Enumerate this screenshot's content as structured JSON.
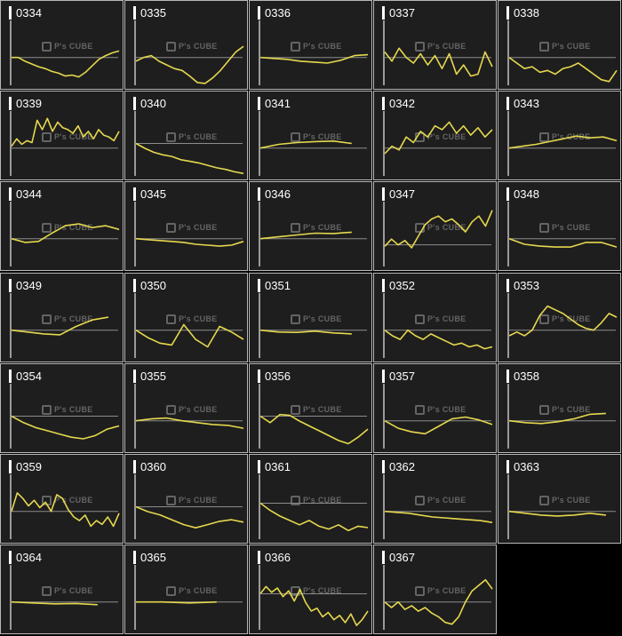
{
  "colors": {
    "background": "#000000",
    "panel": "#1e1e1e",
    "border": "#b8b8b8",
    "line": "#e6d84e",
    "baseline": "#8c8c8c",
    "axis": "#9a9a9a"
  },
  "watermark": "P's CUBE",
  "chart_data": [
    {
      "type": "line",
      "title": "0334",
      "values": [
        0.0,
        -0.0,
        -0.2,
        -0.35,
        -0.5,
        -0.6,
        -0.75,
        -0.85,
        -1.0,
        -0.95,
        -1.05,
        -0.8,
        -0.45,
        -0.1,
        0.1,
        0.25,
        0.35
      ],
      "ylim": [
        -1.5,
        2
      ]
    },
    {
      "type": "line",
      "title": "0335",
      "values": [
        -0.2,
        0.0,
        0.1,
        -0.2,
        -0.4,
        -0.6,
        -0.7,
        -1.0,
        -1.35,
        -1.4,
        -1.1,
        -0.7,
        -0.2,
        0.3,
        0.6
      ],
      "ylim": [
        -1.5,
        2
      ]
    },
    {
      "type": "line",
      "title": "0336",
      "values": [
        0.0,
        -0.05,
        -0.1,
        -0.2,
        -0.25,
        -0.3,
        -0.15,
        0.1,
        0.15
      ],
      "ylim": [
        -1.5,
        2
      ]
    },
    {
      "type": "line",
      "title": "0337",
      "values": [
        0.3,
        -0.2,
        0.5,
        0.0,
        -0.3,
        0.2,
        -0.4,
        0.1,
        -0.6,
        0.2,
        -0.9,
        -0.4,
        -1.0,
        -0.9,
        0.3,
        -0.5
      ],
      "ylim": [
        -1.5,
        2
      ]
    },
    {
      "type": "line",
      "title": "0338",
      "values": [
        0.0,
        -0.3,
        -0.6,
        -0.5,
        -0.8,
        -0.7,
        -0.9,
        -0.6,
        -0.5,
        -0.3,
        -0.6,
        -0.9,
        -1.2,
        -1.3,
        -0.7
      ],
      "ylim": [
        -1.5,
        2
      ]
    },
    {
      "type": "line",
      "title": "0339",
      "values": [
        0.1,
        0.5,
        0.2,
        0.4,
        0.3,
        1.5,
        1.0,
        1.6,
        0.9,
        1.4,
        1.1,
        1.0,
        0.8,
        1.2,
        0.6,
        0.9,
        0.5,
        1.0,
        0.7,
        0.6,
        0.4,
        0.9
      ],
      "ylim": [
        -1.5,
        2
      ]
    },
    {
      "type": "line",
      "title": "0340",
      "values": [
        0.0,
        -0.3,
        -0.55,
        -0.7,
        -0.8,
        -1.0,
        -1.1,
        -1.2,
        -1.35,
        -1.5,
        -1.6,
        -1.75,
        -1.85
      ],
      "ylim": [
        -2,
        2
      ]
    },
    {
      "type": "line",
      "title": "0341",
      "values": [
        0.0,
        0.2,
        0.3,
        0.35,
        0.38,
        0.25
      ],
      "ylim": [
        -1.5,
        2
      ]
    },
    {
      "type": "line",
      "title": "0342",
      "values": [
        -0.3,
        0.1,
        -0.1,
        0.6,
        0.3,
        0.9,
        0.6,
        1.2,
        1.0,
        1.4,
        0.8,
        1.2,
        0.7,
        1.1,
        0.6,
        1.0
      ],
      "ylim": [
        -1.5,
        2
      ]
    },
    {
      "type": "line",
      "title": "0343",
      "values": [
        0.0,
        0.1,
        0.2,
        0.35,
        0.5,
        0.65,
        0.55,
        0.6,
        0.4
      ],
      "ylim": [
        -1.5,
        2
      ]
    },
    {
      "type": "line",
      "title": "0344",
      "values": [
        0.0,
        -0.2,
        -0.15,
        0.3,
        0.7,
        0.8,
        0.6,
        0.7,
        0.5
      ],
      "ylim": [
        -1.5,
        2
      ]
    },
    {
      "type": "line",
      "title": "0345",
      "values": [
        0.0,
        -0.05,
        -0.1,
        -0.15,
        -0.2,
        -0.3,
        -0.35,
        -0.4,
        -0.35,
        -0.15
      ],
      "ylim": [
        -1.5,
        2
      ]
    },
    {
      "type": "line",
      "title": "0346",
      "values": [
        0.0,
        0.1,
        0.2,
        0.3,
        0.28,
        0.35
      ],
      "ylim": [
        -1.5,
        2
      ]
    },
    {
      "type": "line",
      "title": "0347",
      "values": [
        -0.1,
        0.4,
        0.0,
        0.3,
        -0.2,
        0.6,
        1.4,
        1.8,
        2.0,
        1.6,
        1.8,
        1.4,
        0.9,
        1.6,
        2.0,
        1.3,
        2.4
      ],
      "ylim": [
        -1.5,
        3
      ]
    },
    {
      "type": "line",
      "title": "0348",
      "values": [
        0.0,
        -0.3,
        -0.4,
        -0.45,
        -0.45,
        -0.2,
        -0.2,
        -0.45
      ],
      "ylim": [
        -1.5,
        2
      ]
    },
    {
      "type": "line",
      "title": "0349",
      "values": [
        0.0,
        -0.1,
        -0.2,
        -0.25,
        0.2,
        0.55,
        0.7
      ],
      "ylim": [
        -1.5,
        2
      ]
    },
    {
      "type": "line",
      "title": "0350",
      "values": [
        0.0,
        -0.4,
        -0.7,
        -0.8,
        0.3,
        -0.5,
        -0.9,
        0.2,
        -0.1,
        -0.5
      ],
      "ylim": [
        -1.5,
        2
      ]
    },
    {
      "type": "line",
      "title": "0351",
      "values": [
        0.0,
        -0.1,
        -0.12,
        -0.05,
        -0.15,
        -0.2
      ],
      "ylim": [
        -1.5,
        2
      ]
    },
    {
      "type": "line",
      "title": "0352",
      "values": [
        0.0,
        -0.3,
        -0.5,
        0.0,
        -0.3,
        -0.5,
        -0.2,
        -0.4,
        -0.6,
        -0.8,
        -0.7,
        -0.9,
        -0.8,
        -1.0,
        -0.9
      ],
      "ylim": [
        -1.5,
        2
      ]
    },
    {
      "type": "line",
      "title": "0353",
      "values": [
        -0.3,
        -0.1,
        -0.3,
        0.0,
        0.8,
        1.3,
        1.1,
        0.9,
        0.6,
        0.3,
        0.1,
        0.0,
        0.4,
        0.9,
        0.7
      ],
      "ylim": [
        -1.5,
        2
      ]
    },
    {
      "type": "line",
      "title": "0354",
      "values": [
        0.0,
        -0.4,
        -0.7,
        -0.9,
        -1.1,
        -1.3,
        -1.4,
        -1.2,
        -0.8,
        -0.6
      ],
      "ylim": [
        -2,
        2
      ]
    },
    {
      "type": "line",
      "title": "0355",
      "values": [
        0.0,
        0.1,
        0.15,
        0.0,
        -0.1,
        -0.2,
        -0.25,
        -0.4
      ],
      "ylim": [
        -1.5,
        2
      ]
    },
    {
      "type": "line",
      "title": "0356",
      "values": [
        0.0,
        -0.4,
        0.1,
        0.05,
        -0.3,
        -0.6,
        -0.9,
        -1.2,
        -1.5,
        -1.7,
        -1.3,
        -0.8
      ],
      "ylim": [
        -2,
        2
      ]
    },
    {
      "type": "line",
      "title": "0357",
      "values": [
        0.0,
        -0.4,
        -0.6,
        -0.7,
        -0.3,
        0.1,
        0.2,
        0.05,
        -0.2
      ],
      "ylim": [
        -1.5,
        2
      ]
    },
    {
      "type": "line",
      "title": "0358",
      "values": [
        0.0,
        -0.1,
        -0.15,
        -0.05,
        0.1,
        0.35,
        0.4
      ],
      "ylim": [
        -1.5,
        2
      ]
    },
    {
      "type": "line",
      "title": "0359",
      "values": [
        0.0,
        1.0,
        0.7,
        0.3,
        0.6,
        0.2,
        0.5,
        0.0,
        0.9,
        0.7,
        0.1,
        -0.3,
        -0.5,
        -0.2,
        -0.8,
        -0.5,
        -0.7,
        -0.3,
        -0.8,
        -0.1
      ],
      "ylim": [
        -1.5,
        2
      ]
    },
    {
      "type": "line",
      "title": "0360",
      "values": [
        0.0,
        -0.3,
        -0.5,
        -0.8,
        -1.1,
        -1.3,
        -1.1,
        -0.9,
        -0.8,
        -0.95
      ],
      "ylim": [
        -2,
        2
      ]
    },
    {
      "type": "line",
      "title": "0361",
      "values": [
        0.0,
        -0.5,
        -0.9,
        -1.2,
        -1.5,
        -1.2,
        -1.6,
        -1.8,
        -1.5,
        -1.9,
        -1.6,
        -1.7
      ],
      "ylim": [
        -2.5,
        2
      ]
    },
    {
      "type": "line",
      "title": "0362",
      "values": [
        0.0,
        -0.05,
        -0.1,
        -0.2,
        -0.3,
        -0.35,
        -0.4,
        -0.45,
        -0.5,
        -0.6
      ],
      "ylim": [
        -1.5,
        2
      ]
    },
    {
      "type": "line",
      "title": "0363",
      "values": [
        0.0,
        -0.1,
        -0.2,
        -0.25,
        -0.2,
        -0.1,
        -0.2
      ],
      "ylim": [
        -1.5,
        2
      ]
    },
    {
      "type": "line",
      "title": "0364",
      "values": [
        0.0,
        -0.05,
        -0.1,
        -0.08,
        -0.15
      ],
      "ylim": [
        -1.5,
        2
      ]
    },
    {
      "type": "line",
      "title": "0365",
      "values": [
        0.0,
        0.0,
        -0.05,
        0.0
      ],
      "ylim": [
        -1.5,
        2
      ]
    },
    {
      "type": "line",
      "title": "0366",
      "values": [
        0.0,
        0.5,
        0.1,
        0.4,
        -0.2,
        0.2,
        -0.5,
        0.3,
        -0.6,
        -1.2,
        -1.0,
        -1.6,
        -1.3,
        -1.8,
        -1.5,
        -2.0,
        -1.4,
        -2.2,
        -1.8,
        -1.2
      ],
      "ylim": [
        -2.5,
        2
      ]
    },
    {
      "type": "line",
      "title": "0367",
      "values": [
        0.0,
        -0.3,
        0.0,
        -0.4,
        -0.2,
        -0.5,
        -0.3,
        -0.6,
        -0.8,
        -1.1,
        -1.2,
        -0.8,
        0.0,
        0.6,
        0.9,
        1.2,
        0.7
      ],
      "ylim": [
        -1.5,
        2
      ]
    }
  ]
}
